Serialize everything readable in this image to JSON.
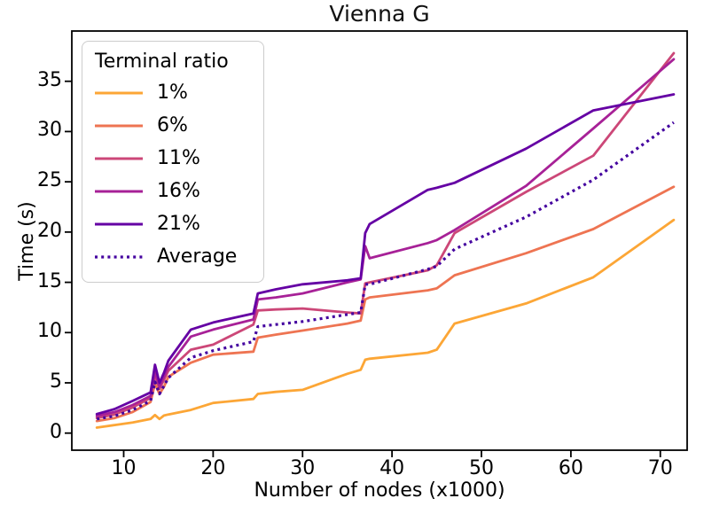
{
  "chart_data": {
    "type": "line",
    "title": "Vienna G",
    "xlabel": "Number of nodes  (x1000)",
    "ylabel": "Time (s)",
    "legend": {
      "title": "Terminal ratio",
      "position": "upper left"
    },
    "x": [
      7,
      9,
      11,
      13,
      13.5,
      14,
      14.5,
      15,
      17.5,
      20,
      24.5,
      25,
      27,
      30,
      35,
      36.5,
      37,
      37.5,
      44,
      45,
      47,
      55,
      62.5,
      71.5
    ],
    "series": [
      {
        "name": "1%",
        "color": "#fca636",
        "style": "solid",
        "values": [
          0.55,
          0.8,
          1.05,
          1.4,
          1.8,
          1.4,
          1.75,
          1.85,
          2.3,
          3.0,
          3.4,
          3.9,
          4.1,
          4.3,
          5.9,
          6.3,
          7.3,
          7.4,
          8.0,
          8.3,
          10.9,
          12.9,
          15.5,
          21.2
        ]
      },
      {
        "name": "6%",
        "color": "#ee7452",
        "style": "solid",
        "values": [
          1.2,
          1.5,
          2.1,
          3.1,
          4.9,
          3.9,
          4.6,
          5.6,
          7.0,
          7.8,
          8.1,
          9.5,
          9.8,
          10.2,
          10.9,
          11.2,
          13.3,
          13.5,
          14.2,
          14.4,
          15.7,
          17.9,
          20.3,
          24.5
        ]
      },
      {
        "name": "11%",
        "color": "#cc4778",
        "style": "solid",
        "values": [
          1.5,
          1.85,
          2.55,
          3.5,
          5.8,
          4.4,
          5.3,
          6.2,
          8.3,
          8.8,
          10.8,
          12.2,
          12.3,
          12.4,
          12.0,
          11.9,
          14.9,
          15.0,
          16.2,
          16.7,
          19.9,
          24.0,
          27.6,
          37.8
        ]
      },
      {
        "name": "16%",
        "color": "#a72197",
        "style": "solid",
        "values": [
          1.7,
          2.1,
          2.8,
          3.7,
          6.1,
          4.6,
          5.6,
          6.6,
          9.6,
          10.3,
          11.3,
          13.3,
          13.5,
          13.9,
          15.0,
          15.3,
          18.6,
          17.4,
          18.9,
          19.2,
          20.2,
          24.6,
          30.3,
          37.2
        ]
      },
      {
        "name": "21%",
        "color": "#6500a4",
        "style": "solid",
        "values": [
          1.9,
          2.4,
          3.2,
          4.05,
          6.8,
          5.0,
          6.0,
          7.2,
          10.3,
          11.0,
          11.9,
          13.9,
          14.3,
          14.8,
          15.2,
          15.4,
          19.9,
          20.8,
          24.2,
          24.4,
          24.9,
          28.3,
          32.1,
          33.7
        ]
      },
      {
        "name": "Average",
        "color": "#44039f",
        "style": "dotted",
        "values": [
          1.4,
          1.7,
          2.3,
          3.2,
          5.1,
          3.9,
          4.7,
          5.5,
          7.5,
          8.2,
          9.1,
          10.6,
          10.8,
          11.1,
          11.8,
          12.0,
          14.8,
          14.8,
          16.3,
          16.6,
          18.3,
          21.5,
          25.2,
          30.9
        ]
      }
    ],
    "x_ticks": [
      10,
      20,
      30,
      40,
      50,
      60,
      70
    ],
    "y_ticks": [
      0,
      5,
      10,
      15,
      20,
      25,
      30,
      35
    ],
    "xlim": [
      4.2,
      73.0
    ],
    "ylim": [
      -1.7,
      40.0
    ],
    "grid": false,
    "frame_color": "#000000",
    "background": "#ffffff"
  }
}
